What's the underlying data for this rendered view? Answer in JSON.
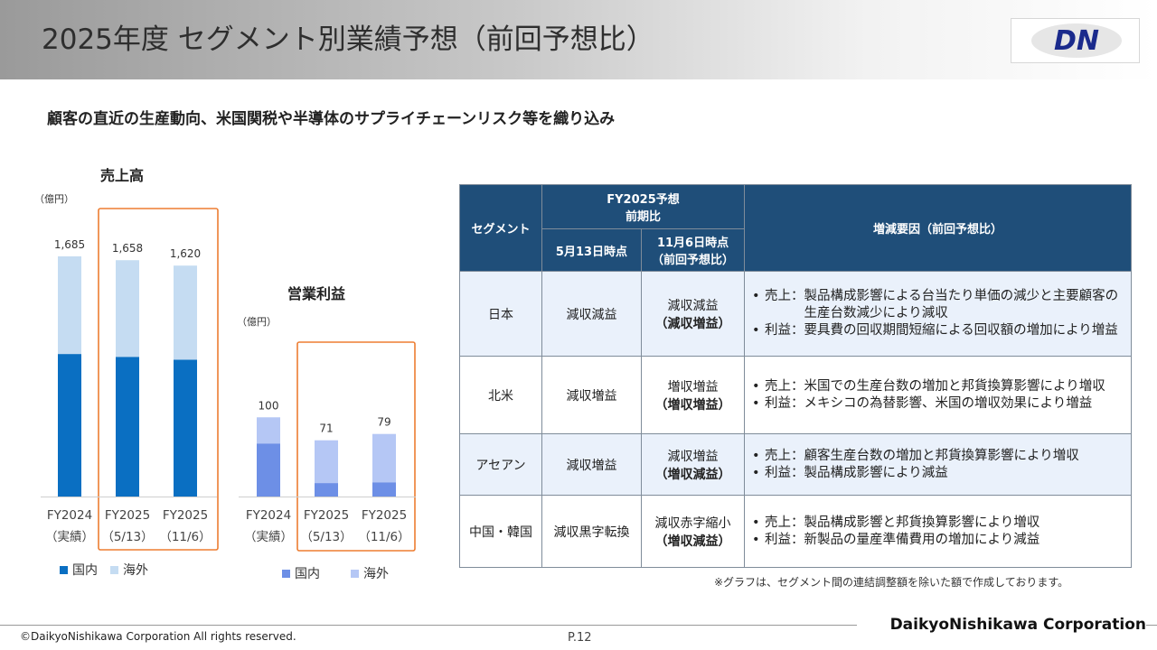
{
  "header": {
    "title": "2025年度 セグメント別業績予想（前回予想比）",
    "logo_text": "DN",
    "colors": {
      "logo_blue": "#1a2a8c"
    }
  },
  "subtitle": "顧客の直近の生産動向、米国関税や半導体のサプライチェーンリスク等を織り込み",
  "chart_data": [
    {
      "type": "bar",
      "stacked": true,
      "title": "売上高",
      "unit": "（億円）",
      "categories": [
        [
          "FY2024",
          "（実績）"
        ],
        [
          "FY2025",
          "（5/13）"
        ],
        [
          "FY2025",
          "（11/6）"
        ]
      ],
      "totals": [
        1685,
        1658,
        1620
      ],
      "series": [
        {
          "name": "国内",
          "values": [
            1000,
            980,
            960
          ],
          "color": "#0a6fc2"
        },
        {
          "name": "海外",
          "values": [
            685,
            678,
            660
          ],
          "color": "#c5dcf2"
        }
      ],
      "ylim": [
        0,
        1900
      ],
      "highlight_categories": [
        1,
        2
      ],
      "highlight_color": "#ed7d31"
    },
    {
      "type": "bar",
      "stacked": true,
      "title": "営業利益",
      "unit": "（億円）",
      "categories": [
        [
          "FY2024",
          "（実績）"
        ],
        [
          "FY2025",
          "（5/13）"
        ],
        [
          "FY2025",
          "（11/6）"
        ]
      ],
      "totals": [
        100,
        71,
        79
      ],
      "series": [
        {
          "name": "国内",
          "values": [
            67,
            17,
            18
          ],
          "color": "#6d8fe6"
        },
        {
          "name": "海外",
          "values": [
            33,
            54,
            61
          ],
          "color": "#b5c7f5"
        }
      ],
      "ylim": [
        0,
        155
      ],
      "highlight_categories": [
        1,
        2
      ],
      "highlight_color": "#ed7d31"
    }
  ],
  "table": {
    "head": {
      "segment": "セグメント",
      "forecast_line1": "FY2025予想",
      "forecast_line2": "前期比",
      "may_label": "5月13日時点",
      "nov_line1": "11月6日時点",
      "nov_line2": "（前回予想比）",
      "factor": "増減要因（前回予想比）"
    },
    "rows": [
      {
        "segment": "日本",
        "may": "減収減益",
        "nov1": "減収減益",
        "nov2": "（減収増益）",
        "factors": [
          {
            "label": "売上：",
            "text": "製品構成影響による台当たり単価の減少と主要顧客の生産台数減少により減収"
          },
          {
            "label": "利益：",
            "text": "要具費の回収期間短縮による回収額の増加により増益"
          }
        ]
      },
      {
        "segment": "北米",
        "may": "減収増益",
        "nov1": "増収増益",
        "nov2": "（増収増益）",
        "factors": [
          {
            "label": "売上：",
            "text": "米国での生産台数の増加と邦貨換算影響により増収"
          },
          {
            "label": "利益：",
            "text": "メキシコの為替影響、米国の増収効果により増益"
          }
        ]
      },
      {
        "segment": "アセアン",
        "may": "減収増益",
        "nov1": "減収増益",
        "nov2": "（増収減益）",
        "factors": [
          {
            "label": "売上：",
            "text": "顧客生産台数の増加と邦貨換算影響により増収"
          },
          {
            "label": "利益：",
            "text": "製品構成影響により減益"
          }
        ]
      },
      {
        "segment": "中国・韓国",
        "may": "減収黒字転換",
        "nov1": "減収赤字縮小",
        "nov2": "（増収減益）",
        "factors": [
          {
            "label": "売上：",
            "text": "製品構成影響と邦貨換算影響により増収"
          },
          {
            "label": "利益：",
            "text": "新製品の量産準備費用の増加により減益"
          }
        ]
      }
    ]
  },
  "note": "※グラフは、セグメント間の連結調整額を除いた額で作成しております。",
  "footer": {
    "copyright": "©DaikyoNishikawa Corporation All rights reserved.",
    "page": "P.12",
    "corporation": "DaikyoNishikawa Corporation"
  }
}
